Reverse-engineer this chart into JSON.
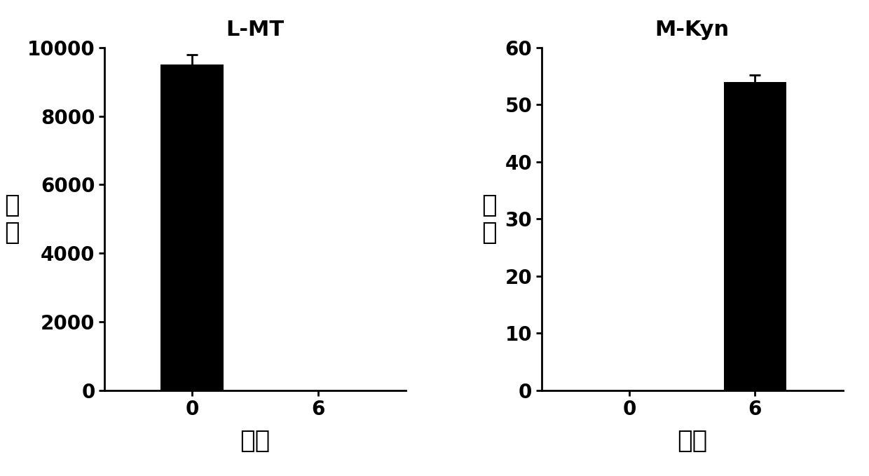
{
  "left_title": "L-MT",
  "right_title": "M-Kyn",
  "ylabel": "强度",
  "xlabel": "天数",
  "left": {
    "categories": [
      "0",
      "6"
    ],
    "values": [
      9500,
      0
    ],
    "errors": [
      300,
      0
    ],
    "ylim": [
      0,
      10000
    ],
    "yticks": [
      0,
      2000,
      4000,
      6000,
      8000,
      10000
    ]
  },
  "right": {
    "categories": [
      "0",
      "6"
    ],
    "values": [
      0,
      54
    ],
    "errors": [
      0,
      1.2
    ],
    "ylim": [
      0,
      60
    ],
    "yticks": [
      0,
      10,
      20,
      30,
      40,
      50,
      60
    ]
  },
  "bar_color": "#000000",
  "bar_width": 0.5,
  "title_fontsize": 22,
  "tick_fontsize": 20,
  "label_fontsize": 26,
  "background_color": "#ffffff"
}
